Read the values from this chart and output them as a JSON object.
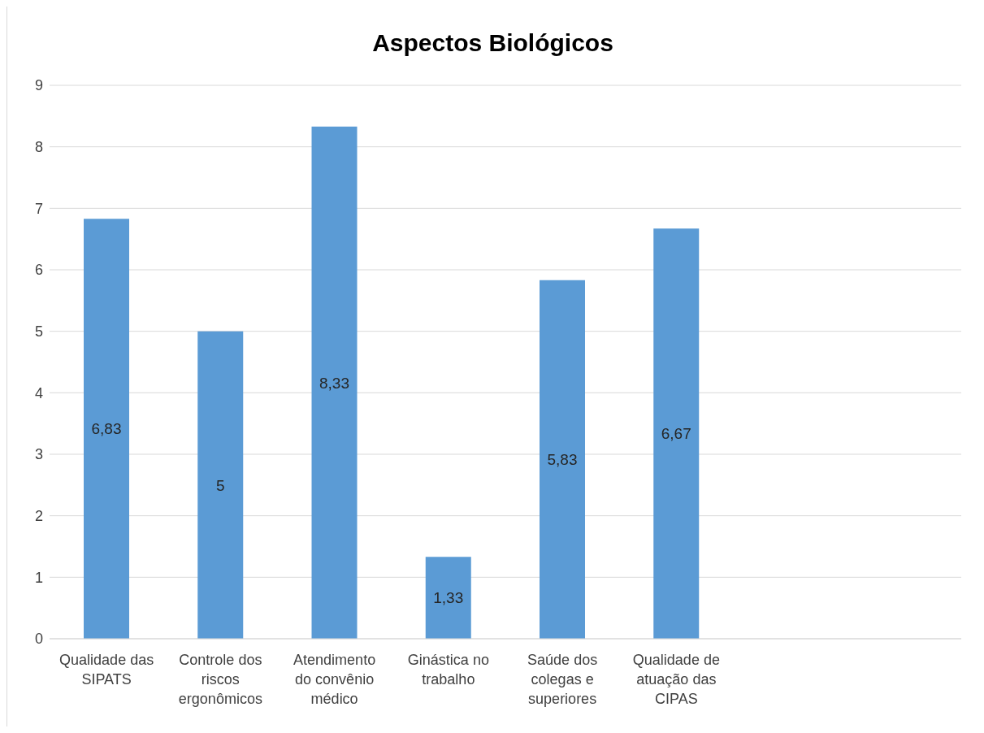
{
  "chart_data": {
    "type": "bar",
    "title": "Aspectos Biológicos",
    "categories": [
      "Qualidade das SIPATS",
      "Controle dos riscos ergonômicos",
      "Atendimento do convênio médico",
      "Ginástica no trabalho",
      "Saúde dos colegas e superiores",
      "Qualidade de atuação das CIPAS",
      null,
      null
    ],
    "values": [
      6.83,
      5,
      8.33,
      1.33,
      5.83,
      6.67,
      null,
      null
    ],
    "color": "#5b9bd5",
    "value_labels": [
      "6,83",
      "5",
      "8,33",
      "1,33",
      "5,83",
      "6,67",
      null,
      null
    ],
    "ylim": [
      0,
      9
    ],
    "yticks": [
      0,
      1,
      2,
      3,
      4,
      5,
      6,
      7,
      8,
      9
    ],
    "grid": "y"
  }
}
